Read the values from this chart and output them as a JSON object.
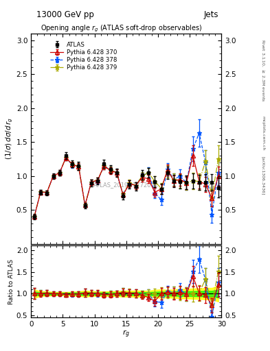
{
  "title_top": "13000 GeV pp",
  "title_right": "Jets",
  "plot_title": "Opening angle $r_g$ (ATLAS soft-drop observables)",
  "xlabel": "$r_g$",
  "ylabel_main": "$(1/\\sigma)\\,d\\sigma/d\\,r_g$",
  "ylabel_ratio": "Ratio to ATLAS",
  "watermark": "ATLAS_2019_I1772062",
  "right_label_top": "Rivet 3.1.10, $\\geq$ 2.3M events",
  "right_label_bot": "[arXiv:1306.3436]",
  "right_label_site": "mcplots.cern.ch",
  "atlas_x": [
    0.5,
    1.5,
    2.5,
    3.5,
    4.5,
    5.5,
    6.5,
    7.5,
    8.5,
    9.5,
    10.5,
    11.5,
    12.5,
    13.5,
    14.5,
    15.5,
    16.5,
    17.5,
    18.5,
    19.5,
    20.5,
    21.5,
    22.5,
    23.5,
    24.5,
    25.5,
    26.5,
    27.5,
    28.5,
    29.5
  ],
  "atlas_y": [
    0.4,
    0.76,
    0.75,
    1.0,
    1.05,
    1.3,
    1.18,
    1.15,
    0.56,
    0.9,
    0.93,
    1.18,
    1.1,
    1.05,
    0.7,
    0.88,
    0.85,
    1.02,
    1.05,
    0.92,
    0.81,
    1.05,
    0.93,
    0.92,
    0.91,
    0.93,
    0.91,
    0.91,
    0.91,
    0.83
  ],
  "atlas_yerr": [
    0.04,
    0.04,
    0.04,
    0.04,
    0.04,
    0.05,
    0.05,
    0.06,
    0.04,
    0.05,
    0.05,
    0.06,
    0.06,
    0.06,
    0.05,
    0.06,
    0.06,
    0.07,
    0.07,
    0.08,
    0.08,
    0.09,
    0.09,
    0.1,
    0.1,
    0.11,
    0.11,
    0.12,
    0.12,
    0.15
  ],
  "p370_x": [
    0.5,
    1.5,
    2.5,
    3.5,
    4.5,
    5.5,
    6.5,
    7.5,
    8.5,
    9.5,
    10.5,
    11.5,
    12.5,
    13.5,
    14.5,
    15.5,
    16.5,
    17.5,
    18.5,
    19.5,
    20.5,
    21.5,
    22.5,
    23.5,
    24.5,
    25.5,
    26.5,
    27.5,
    28.5,
    29.5
  ],
  "p370_y": [
    0.4,
    0.76,
    0.76,
    1.0,
    1.05,
    1.27,
    1.17,
    1.14,
    0.57,
    0.91,
    0.94,
    1.15,
    1.08,
    1.05,
    0.72,
    0.89,
    0.86,
    0.98,
    0.96,
    0.76,
    0.81,
    1.09,
    0.93,
    0.95,
    0.9,
    1.3,
    0.92,
    0.88,
    0.67,
    1.0
  ],
  "p370_yerr": [
    0.03,
    0.03,
    0.03,
    0.03,
    0.04,
    0.04,
    0.04,
    0.05,
    0.03,
    0.04,
    0.04,
    0.05,
    0.05,
    0.05,
    0.04,
    0.05,
    0.05,
    0.06,
    0.06,
    0.07,
    0.07,
    0.08,
    0.08,
    0.09,
    0.09,
    0.15,
    0.1,
    0.11,
    0.12,
    0.14
  ],
  "p378_x": [
    0.5,
    1.5,
    2.5,
    3.5,
    4.5,
    5.5,
    6.5,
    7.5,
    8.5,
    9.5,
    10.5,
    11.5,
    12.5,
    13.5,
    14.5,
    15.5,
    16.5,
    17.5,
    18.5,
    19.5,
    20.5,
    21.5,
    22.5,
    23.5,
    24.5,
    25.5,
    26.5,
    27.5,
    28.5,
    29.5
  ],
  "p378_y": [
    0.4,
    0.77,
    0.76,
    1.0,
    1.05,
    1.27,
    1.16,
    1.14,
    0.57,
    0.91,
    0.93,
    1.15,
    1.09,
    1.05,
    0.73,
    0.89,
    0.86,
    1.0,
    1.05,
    0.75,
    0.65,
    1.1,
    0.95,
    1.0,
    0.9,
    1.4,
    1.63,
    1.2,
    0.43,
    1.05
  ],
  "p378_yerr": [
    0.03,
    0.03,
    0.03,
    0.03,
    0.04,
    0.04,
    0.04,
    0.05,
    0.03,
    0.04,
    0.04,
    0.05,
    0.05,
    0.05,
    0.04,
    0.05,
    0.05,
    0.06,
    0.08,
    0.08,
    0.08,
    0.09,
    0.09,
    0.1,
    0.1,
    0.18,
    0.2,
    0.18,
    0.12,
    0.18
  ],
  "p379_x": [
    0.5,
    1.5,
    2.5,
    3.5,
    4.5,
    5.5,
    6.5,
    7.5,
    8.5,
    9.5,
    10.5,
    11.5,
    12.5,
    13.5,
    14.5,
    15.5,
    16.5,
    17.5,
    18.5,
    19.5,
    20.5,
    21.5,
    22.5,
    23.5,
    24.5,
    25.5,
    26.5,
    27.5,
    28.5,
    29.5
  ],
  "p379_y": [
    0.4,
    0.77,
    0.76,
    1.0,
    1.05,
    1.27,
    1.17,
    1.14,
    0.57,
    0.91,
    0.94,
    1.15,
    1.09,
    1.05,
    0.73,
    0.9,
    0.86,
    1.0,
    1.05,
    0.92,
    0.82,
    1.07,
    0.95,
    0.93,
    0.9,
    0.93,
    0.92,
    1.22,
    0.68,
    1.25
  ],
  "p379_yerr": [
    0.03,
    0.03,
    0.03,
    0.03,
    0.04,
    0.04,
    0.04,
    0.05,
    0.03,
    0.04,
    0.04,
    0.05,
    0.05,
    0.05,
    0.04,
    0.05,
    0.05,
    0.06,
    0.07,
    0.08,
    0.08,
    0.09,
    0.09,
    0.1,
    0.1,
    0.12,
    0.12,
    0.16,
    0.13,
    0.2
  ],
  "color_atlas": "black",
  "color_p370": "#cc0000",
  "color_p378": "#0055ff",
  "color_p379": "#aaaa00",
  "ylim_main": [
    0.0,
    3.1
  ],
  "ylim_ratio": [
    0.45,
    2.1
  ],
  "xlim": [
    0,
    30
  ],
  "yticks_main": [
    0.5,
    1.0,
    1.5,
    2.0,
    2.5,
    3.0
  ],
  "yticks_ratio": [
    0.5,
    1.0,
    1.5,
    2.0
  ],
  "xticks": [
    0,
    5,
    10,
    15,
    20,
    25,
    30
  ]
}
